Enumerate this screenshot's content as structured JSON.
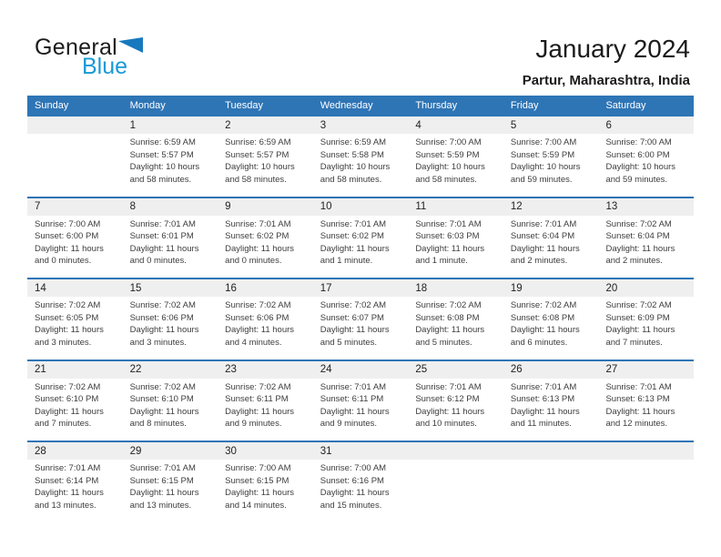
{
  "logo": {
    "line1": "General",
    "line2": "Blue"
  },
  "header": {
    "title": "January 2024",
    "location": "Partur, Maharashtra, India"
  },
  "colors": {
    "header_bar": "#2E75B6",
    "week_divider": "#2E75B6",
    "day_band": "#EFEFEF",
    "logo_blue": "#1899D6",
    "logo_triangle": "#1878BE",
    "title_text": "#1B1B1B",
    "body_text": "#3D3D3D"
  },
  "weekdays": [
    "Sunday",
    "Monday",
    "Tuesday",
    "Wednesday",
    "Thursday",
    "Friday",
    "Saturday"
  ],
  "weeks": [
    [
      {
        "day": "",
        "lines": []
      },
      {
        "day": "1",
        "lines": [
          "Sunrise: 6:59 AM",
          "Sunset: 5:57 PM",
          "Daylight: 10 hours",
          "and 58 minutes."
        ]
      },
      {
        "day": "2",
        "lines": [
          "Sunrise: 6:59 AM",
          "Sunset: 5:57 PM",
          "Daylight: 10 hours",
          "and 58 minutes."
        ]
      },
      {
        "day": "3",
        "lines": [
          "Sunrise: 6:59 AM",
          "Sunset: 5:58 PM",
          "Daylight: 10 hours",
          "and 58 minutes."
        ]
      },
      {
        "day": "4",
        "lines": [
          "Sunrise: 7:00 AM",
          "Sunset: 5:59 PM",
          "Daylight: 10 hours",
          "and 58 minutes."
        ]
      },
      {
        "day": "5",
        "lines": [
          "Sunrise: 7:00 AM",
          "Sunset: 5:59 PM",
          "Daylight: 10 hours",
          "and 59 minutes."
        ]
      },
      {
        "day": "6",
        "lines": [
          "Sunrise: 7:00 AM",
          "Sunset: 6:00 PM",
          "Daylight: 10 hours",
          "and 59 minutes."
        ]
      }
    ],
    [
      {
        "day": "7",
        "lines": [
          "Sunrise: 7:00 AM",
          "Sunset: 6:00 PM",
          "Daylight: 11 hours",
          "and 0 minutes."
        ]
      },
      {
        "day": "8",
        "lines": [
          "Sunrise: 7:01 AM",
          "Sunset: 6:01 PM",
          "Daylight: 11 hours",
          "and 0 minutes."
        ]
      },
      {
        "day": "9",
        "lines": [
          "Sunrise: 7:01 AM",
          "Sunset: 6:02 PM",
          "Daylight: 11 hours",
          "and 0 minutes."
        ]
      },
      {
        "day": "10",
        "lines": [
          "Sunrise: 7:01 AM",
          "Sunset: 6:02 PM",
          "Daylight: 11 hours",
          "and 1 minute."
        ]
      },
      {
        "day": "11",
        "lines": [
          "Sunrise: 7:01 AM",
          "Sunset: 6:03 PM",
          "Daylight: 11 hours",
          "and 1 minute."
        ]
      },
      {
        "day": "12",
        "lines": [
          "Sunrise: 7:01 AM",
          "Sunset: 6:04 PM",
          "Daylight: 11 hours",
          "and 2 minutes."
        ]
      },
      {
        "day": "13",
        "lines": [
          "Sunrise: 7:02 AM",
          "Sunset: 6:04 PM",
          "Daylight: 11 hours",
          "and 2 minutes."
        ]
      }
    ],
    [
      {
        "day": "14",
        "lines": [
          "Sunrise: 7:02 AM",
          "Sunset: 6:05 PM",
          "Daylight: 11 hours",
          "and 3 minutes."
        ]
      },
      {
        "day": "15",
        "lines": [
          "Sunrise: 7:02 AM",
          "Sunset: 6:06 PM",
          "Daylight: 11 hours",
          "and 3 minutes."
        ]
      },
      {
        "day": "16",
        "lines": [
          "Sunrise: 7:02 AM",
          "Sunset: 6:06 PM",
          "Daylight: 11 hours",
          "and 4 minutes."
        ]
      },
      {
        "day": "17",
        "lines": [
          "Sunrise: 7:02 AM",
          "Sunset: 6:07 PM",
          "Daylight: 11 hours",
          "and 5 minutes."
        ]
      },
      {
        "day": "18",
        "lines": [
          "Sunrise: 7:02 AM",
          "Sunset: 6:08 PM",
          "Daylight: 11 hours",
          "and 5 minutes."
        ]
      },
      {
        "day": "19",
        "lines": [
          "Sunrise: 7:02 AM",
          "Sunset: 6:08 PM",
          "Daylight: 11 hours",
          "and 6 minutes."
        ]
      },
      {
        "day": "20",
        "lines": [
          "Sunrise: 7:02 AM",
          "Sunset: 6:09 PM",
          "Daylight: 11 hours",
          "and 7 minutes."
        ]
      }
    ],
    [
      {
        "day": "21",
        "lines": [
          "Sunrise: 7:02 AM",
          "Sunset: 6:10 PM",
          "Daylight: 11 hours",
          "and 7 minutes."
        ]
      },
      {
        "day": "22",
        "lines": [
          "Sunrise: 7:02 AM",
          "Sunset: 6:10 PM",
          "Daylight: 11 hours",
          "and 8 minutes."
        ]
      },
      {
        "day": "23",
        "lines": [
          "Sunrise: 7:02 AM",
          "Sunset: 6:11 PM",
          "Daylight: 11 hours",
          "and 9 minutes."
        ]
      },
      {
        "day": "24",
        "lines": [
          "Sunrise: 7:01 AM",
          "Sunset: 6:11 PM",
          "Daylight: 11 hours",
          "and 9 minutes."
        ]
      },
      {
        "day": "25",
        "lines": [
          "Sunrise: 7:01 AM",
          "Sunset: 6:12 PM",
          "Daylight: 11 hours",
          "and 10 minutes."
        ]
      },
      {
        "day": "26",
        "lines": [
          "Sunrise: 7:01 AM",
          "Sunset: 6:13 PM",
          "Daylight: 11 hours",
          "and 11 minutes."
        ]
      },
      {
        "day": "27",
        "lines": [
          "Sunrise: 7:01 AM",
          "Sunset: 6:13 PM",
          "Daylight: 11 hours",
          "and 12 minutes."
        ]
      }
    ],
    [
      {
        "day": "28",
        "lines": [
          "Sunrise: 7:01 AM",
          "Sunset: 6:14 PM",
          "Daylight: 11 hours",
          "and 13 minutes."
        ]
      },
      {
        "day": "29",
        "lines": [
          "Sunrise: 7:01 AM",
          "Sunset: 6:15 PM",
          "Daylight: 11 hours",
          "and 13 minutes."
        ]
      },
      {
        "day": "30",
        "lines": [
          "Sunrise: 7:00 AM",
          "Sunset: 6:15 PM",
          "Daylight: 11 hours",
          "and 14 minutes."
        ]
      },
      {
        "day": "31",
        "lines": [
          "Sunrise: 7:00 AM",
          "Sunset: 6:16 PM",
          "Daylight: 11 hours",
          "and 15 minutes."
        ]
      },
      {
        "day": "",
        "lines": []
      },
      {
        "day": "",
        "lines": []
      },
      {
        "day": "",
        "lines": []
      }
    ]
  ]
}
